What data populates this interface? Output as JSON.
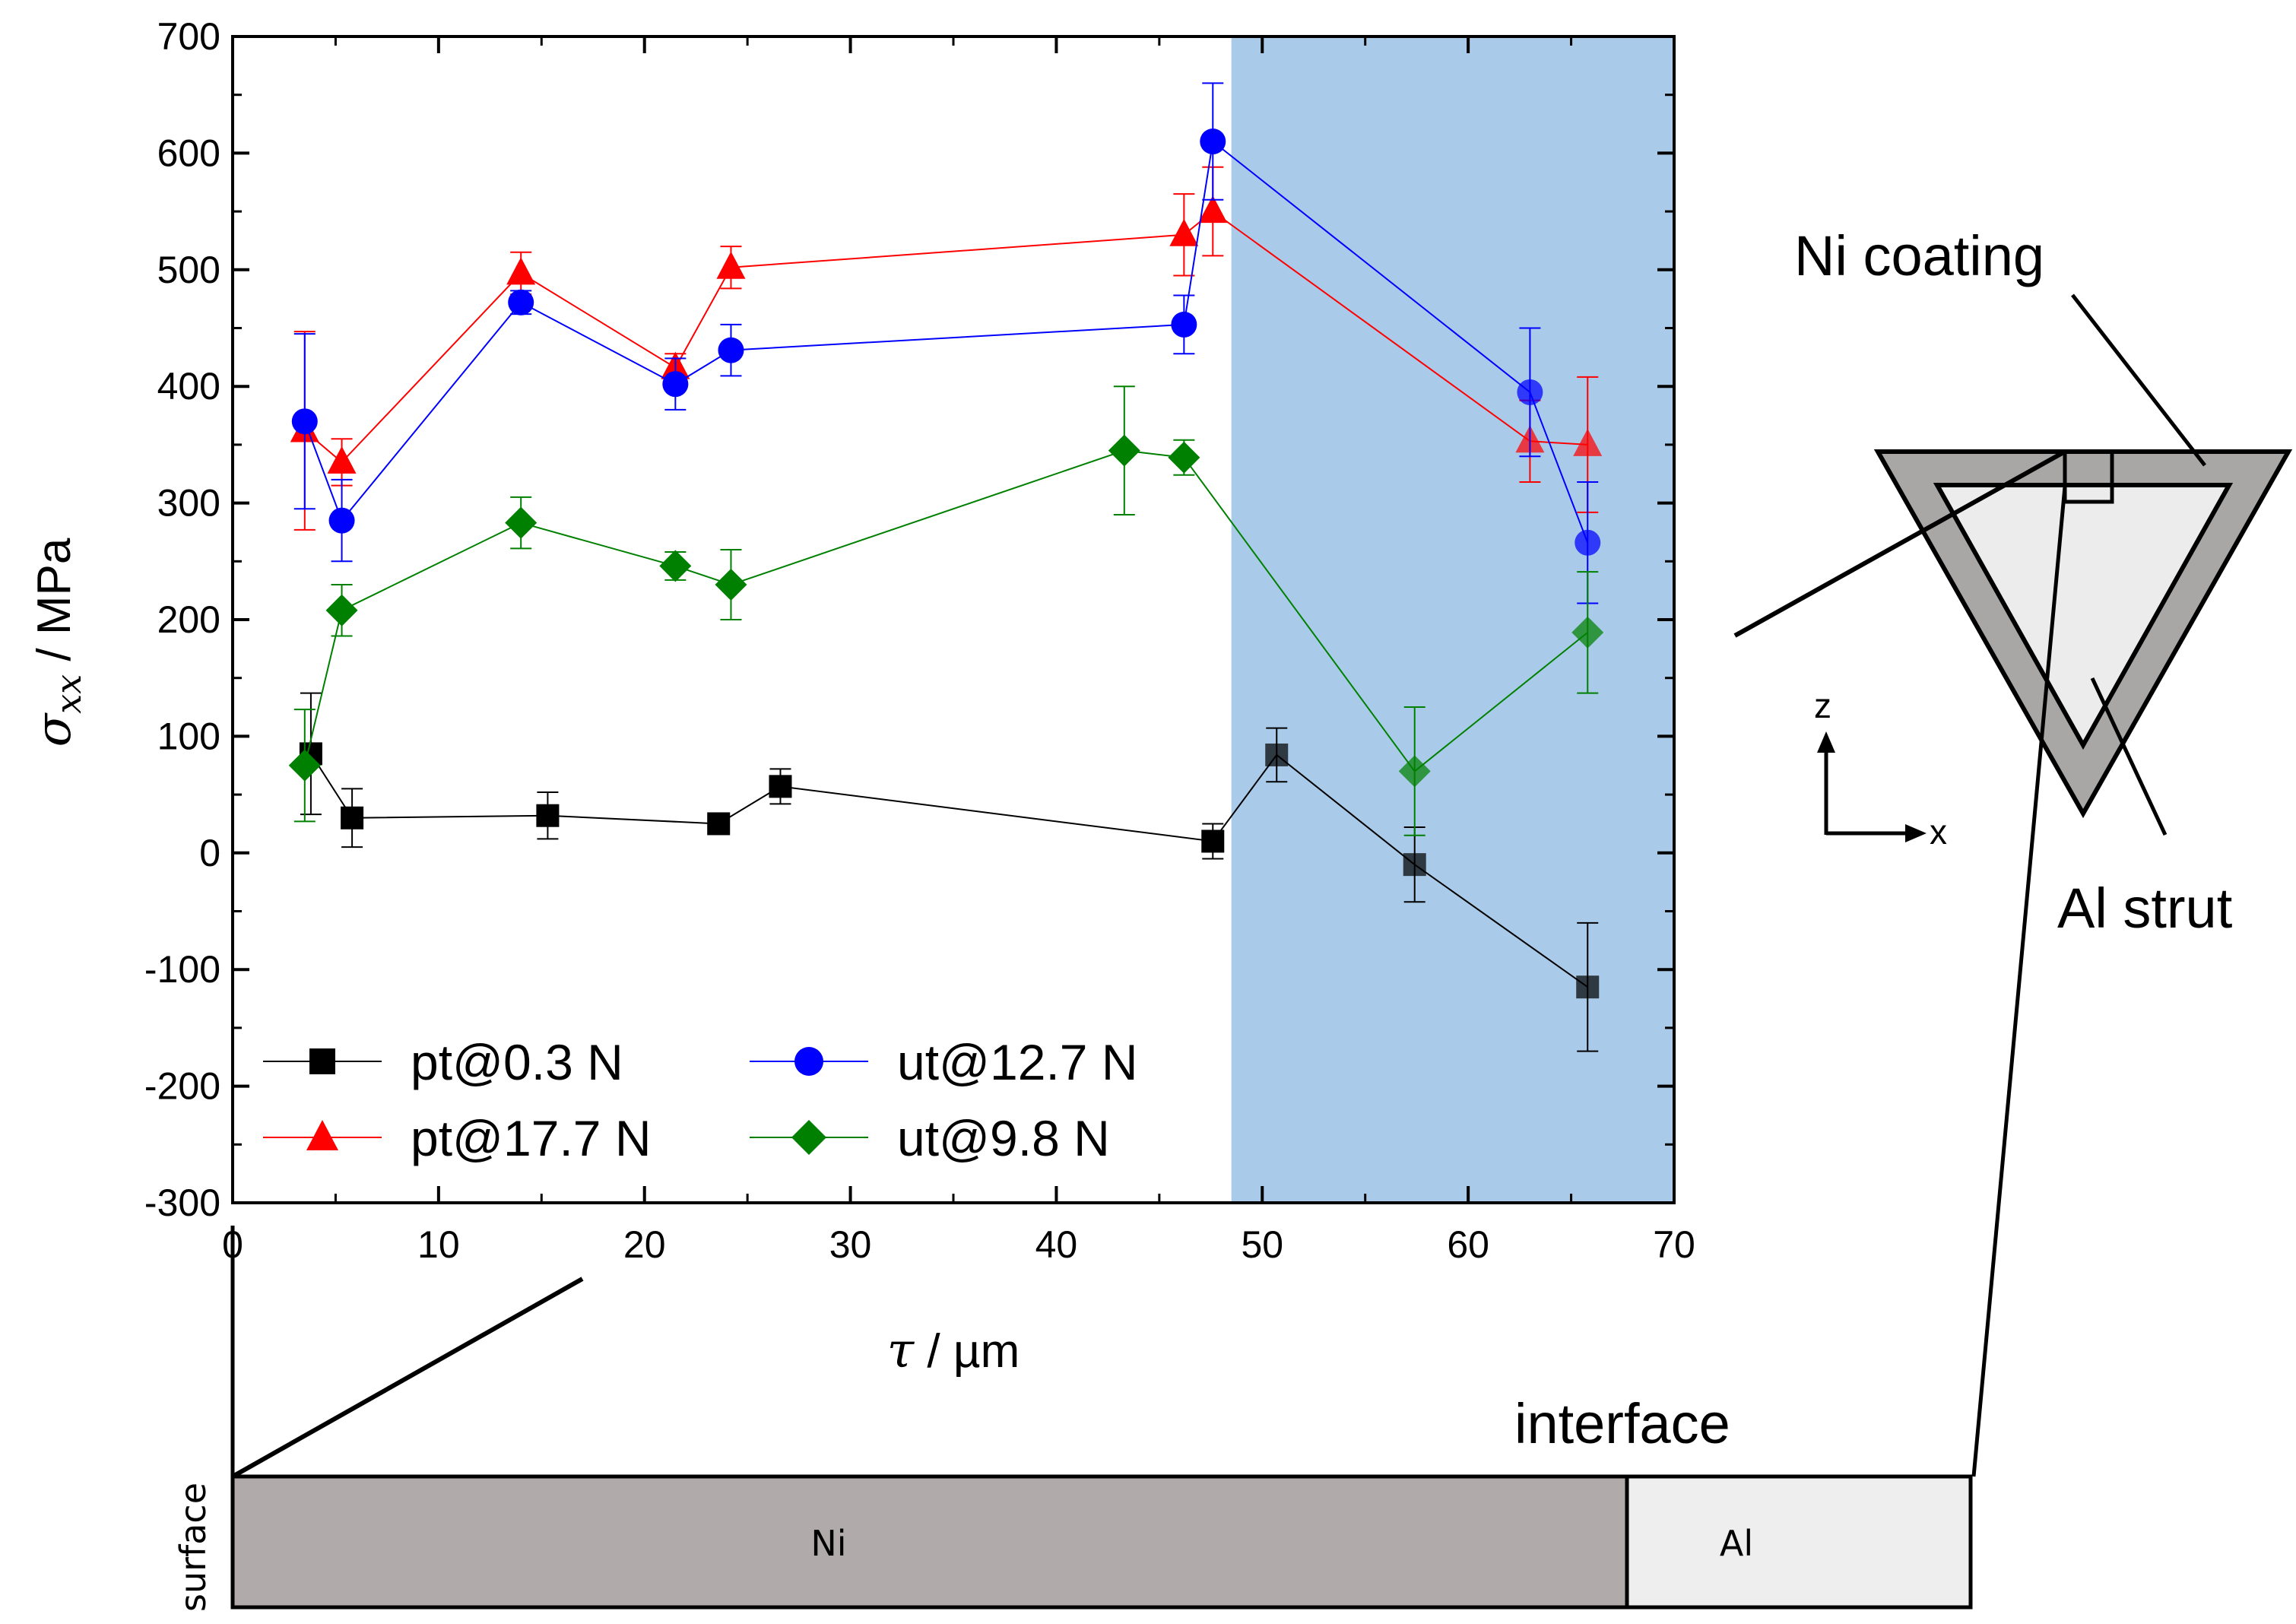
{
  "chart_data": {
    "type": "scatter",
    "xlabel": {
      "symbol": "τ",
      "unit": " / µm"
    },
    "ylabel": {
      "symbol": "σ",
      "subscript": "xx",
      "unit": " / MPa"
    },
    "xlim": [
      0,
      70
    ],
    "ylim": [
      -300,
      700
    ],
    "x_ticks": [
      0,
      10,
      20,
      30,
      40,
      50,
      60,
      70
    ],
    "y_ticks": [
      -300,
      -200,
      -100,
      0,
      100,
      200,
      300,
      400,
      500,
      600,
      700
    ],
    "shaded_region": {
      "x_start": 48.5,
      "x_end": 70,
      "color": "#a9cbe9"
    },
    "legend_placement": "bottom-left",
    "series": [
      {
        "name": "pt@0.3 N",
        "color": "#000000",
        "marker": "square",
        "x": [
          3.8,
          5.8,
          15.3,
          23.6,
          26.6,
          47.6,
          50.7,
          57.4,
          65.8
        ],
        "y": [
          85,
          30,
          32,
          25,
          57,
          10,
          84,
          -10,
          -115
        ],
        "err": [
          52,
          25,
          20,
          5,
          15,
          15,
          23,
          32,
          55
        ]
      },
      {
        "name": "pt@17.7 N",
        "color": "#ff0000",
        "marker": "triangle",
        "x": [
          3.5,
          5.3,
          14.0,
          21.5,
          24.2,
          46.2,
          47.6,
          63.0,
          65.8
        ],
        "y": [
          362,
          335,
          497,
          416,
          502,
          530,
          550,
          353,
          350
        ],
        "err": [
          85,
          20,
          18,
          12,
          18,
          35,
          38,
          35,
          58
        ]
      },
      {
        "name": "ut@12.7 N",
        "color": "#0000ff",
        "marker": "circle",
        "x": [
          3.5,
          5.3,
          14.0,
          21.5,
          24.2,
          46.2,
          47.6,
          63.0,
          65.8
        ],
        "y": [
          370,
          285,
          472,
          402,
          431,
          453,
          610,
          395,
          266
        ],
        "err": [
          75,
          35,
          10,
          22,
          22,
          25,
          50,
          55,
          52
        ]
      },
      {
        "name": "ut@9.8 N",
        "color": "#008000",
        "marker": "diamond",
        "x": [
          3.5,
          5.3,
          14.0,
          21.5,
          24.2,
          43.3,
          46.2,
          57.4,
          65.8
        ],
        "y": [
          75,
          208,
          283,
          246,
          230,
          345,
          339,
          70,
          189
        ],
        "err": [
          48,
          22,
          22,
          12,
          30,
          55,
          15,
          55,
          52
        ]
      }
    ]
  },
  "annotations": {
    "ni_coating": "Ni coating",
    "al_strut": "Al strut",
    "z_axis": "z",
    "x_axis": "x",
    "interface": "interface",
    "surface": "surface",
    "ni_layer": "Ni",
    "al_layer": "Al"
  },
  "colors": {
    "ni_gray": "#b0aaaa",
    "al_light": "#eeeeee",
    "triangle_outer": "#a9a6a6",
    "triangle_inner": "#ececec"
  }
}
